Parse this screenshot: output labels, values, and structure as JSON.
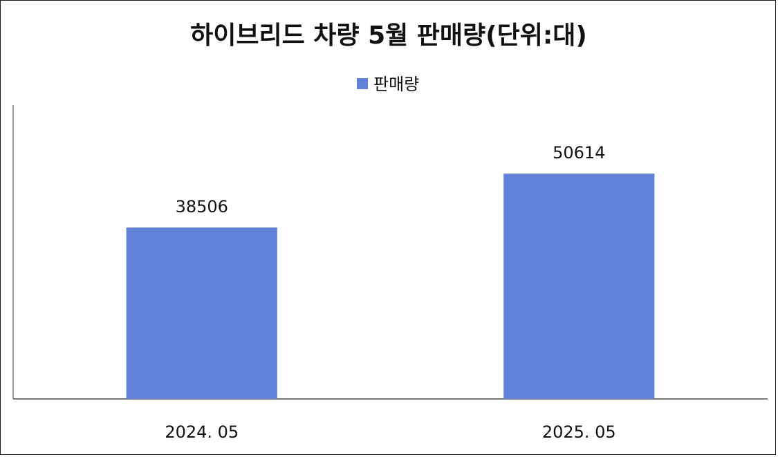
{
  "chart_data": {
    "type": "bar",
    "title": "하이브리드 차량 5월 판매량(단위:대)",
    "categories": [
      "2024. 05",
      "2025. 05"
    ],
    "series": [
      {
        "name": "판매량",
        "values": [
          38506,
          50614
        ],
        "color": "#6281d8"
      }
    ],
    "xlabel": "",
    "ylabel": "",
    "ylim": [
      0,
      66000
    ],
    "grid": false,
    "legend_position": "top-center",
    "data_labels": true
  }
}
